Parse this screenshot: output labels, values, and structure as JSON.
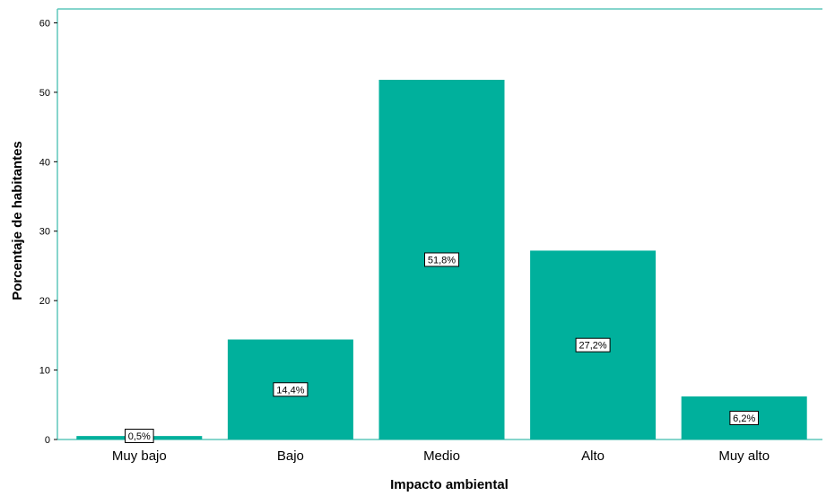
{
  "chart_data": {
    "type": "bar",
    "categories": [
      "Muy bajo",
      "Bajo",
      "Medio",
      "Alto",
      "Muy alto"
    ],
    "values": [
      0.5,
      14.4,
      51.8,
      27.2,
      6.2
    ],
    "data_labels": [
      "0,5%",
      "14,4%",
      "51,8%",
      "27,2%",
      "6,2%"
    ],
    "yticks": [
      0,
      10,
      20,
      30,
      40,
      50,
      60
    ],
    "ylim": [
      0,
      60
    ],
    "xlabel": "Impacto ambiental",
    "ylabel": "Porcentaje de habitantes",
    "title": "",
    "grid": false,
    "colors": {
      "bar": "#00b09c",
      "frame": "#5fc7bb",
      "label_bg": "#ffffff",
      "label_border": "#000000"
    }
  }
}
